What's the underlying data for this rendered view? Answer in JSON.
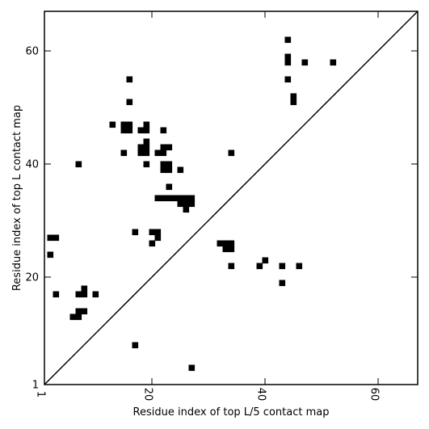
{
  "chart_data": {
    "type": "scatter",
    "xlabel": "Residue index of top L/5 contact map",
    "ylabel": "Residue index of top L contact map",
    "xlim": [
      1,
      67
    ],
    "ylim": [
      1,
      67
    ],
    "x_ticks": [
      {
        "value": 1,
        "label": "1"
      },
      {
        "value": 20,
        "label": "20"
      },
      {
        "value": 40,
        "label": "40"
      },
      {
        "value": 60,
        "label": "60"
      }
    ],
    "y_ticks": [
      {
        "value": 1,
        "label": "1"
      },
      {
        "value": 20,
        "label": "20"
      },
      {
        "value": 40,
        "label": "40"
      },
      {
        "value": 60,
        "label": "60"
      }
    ],
    "diagonal": true,
    "marker_color": "#000000",
    "points": [
      [
        44,
        62
      ],
      [
        44,
        59
      ],
      [
        44,
        58
      ],
      [
        47,
        58
      ],
      [
        52,
        58
      ],
      [
        16,
        55
      ],
      [
        44,
        55
      ],
      [
        45,
        52
      ],
      [
        45,
        51
      ],
      [
        16,
        51
      ],
      [
        13,
        47
      ],
      [
        15,
        47
      ],
      [
        16,
        47
      ],
      [
        19,
        47
      ],
      [
        15,
        46
      ],
      [
        16,
        46
      ],
      [
        18,
        46
      ],
      [
        19,
        46
      ],
      [
        22,
        46
      ],
      [
        19,
        44
      ],
      [
        18,
        43
      ],
      [
        19,
        43
      ],
      [
        22,
        43
      ],
      [
        23,
        43
      ],
      [
        15,
        42
      ],
      [
        18,
        42
      ],
      [
        19,
        42
      ],
      [
        21,
        42
      ],
      [
        22,
        42
      ],
      [
        34,
        42
      ],
      [
        7,
        40
      ],
      [
        19,
        40
      ],
      [
        22,
        40
      ],
      [
        23,
        40
      ],
      [
        22,
        39
      ],
      [
        23,
        39
      ],
      [
        25,
        39
      ],
      [
        23,
        36
      ],
      [
        21,
        34
      ],
      [
        22,
        34
      ],
      [
        23,
        34
      ],
      [
        24,
        34
      ],
      [
        25,
        34
      ],
      [
        26,
        34
      ],
      [
        27,
        34
      ],
      [
        25,
        33
      ],
      [
        26,
        33
      ],
      [
        27,
        33
      ],
      [
        26,
        32
      ],
      [
        17,
        28
      ],
      [
        20,
        28
      ],
      [
        21,
        28
      ],
      [
        21,
        27
      ],
      [
        2,
        27
      ],
      [
        3,
        27
      ],
      [
        20,
        26
      ],
      [
        32,
        26
      ],
      [
        33,
        26
      ],
      [
        34,
        26
      ],
      [
        33,
        25
      ],
      [
        34,
        25
      ],
      [
        2,
        24
      ],
      [
        34,
        22
      ],
      [
        39,
        22
      ],
      [
        43,
        22
      ],
      [
        46,
        22
      ],
      [
        40,
        23
      ],
      [
        43,
        19
      ],
      [
        8,
        18
      ],
      [
        3,
        17
      ],
      [
        7,
        17
      ],
      [
        8,
        17
      ],
      [
        10,
        17
      ],
      [
        7,
        14
      ],
      [
        8,
        14
      ],
      [
        6,
        13
      ],
      [
        7,
        13
      ],
      [
        17,
        8
      ],
      [
        27,
        4
      ]
    ]
  }
}
